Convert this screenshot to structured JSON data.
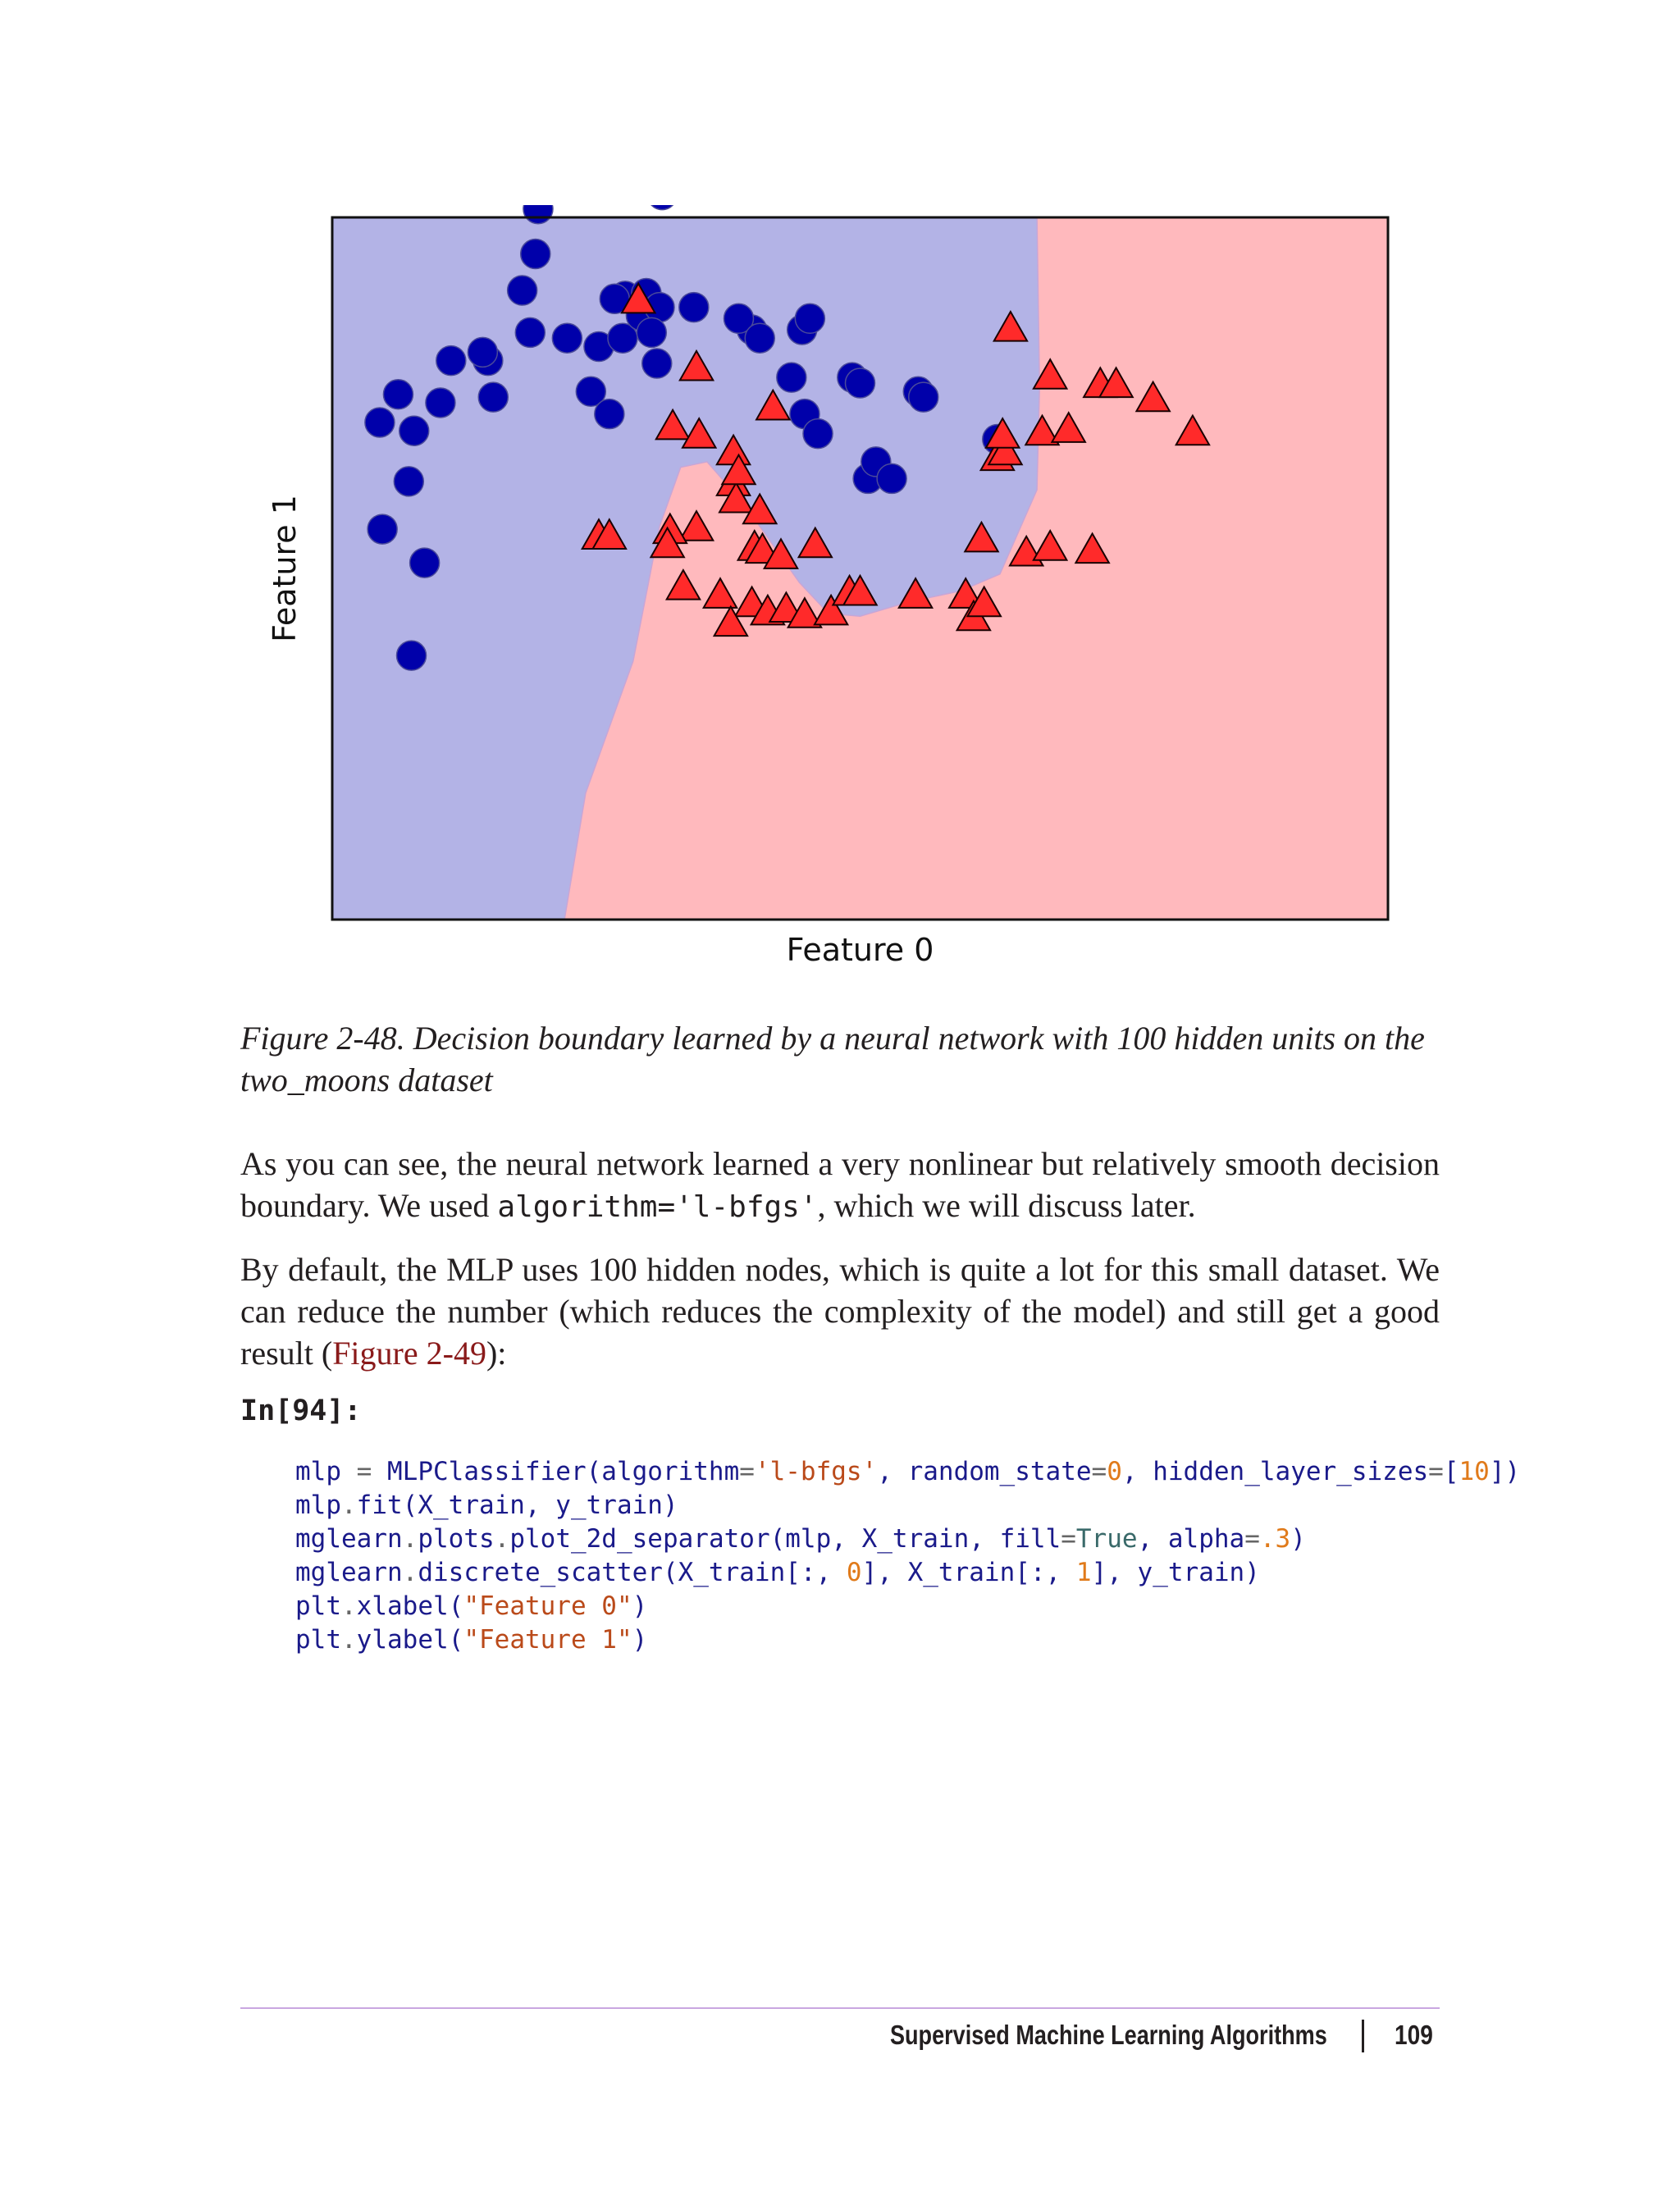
{
  "chart_data": {
    "type": "scatter",
    "title": "",
    "xlabel": "Feature 0",
    "ylabel": "Feature 1",
    "xlim": [
      -1.5,
      2.5
    ],
    "ylim": [
      -1.0,
      1.5
    ],
    "grid": false,
    "regions": {
      "class_0_fill": "#b3b3e6",
      "class_1_fill": "#ffb9bd",
      "boundary": [
        [
          -0.62,
          -1.0
        ],
        [
          -0.54,
          -0.55
        ],
        [
          -0.36,
          -0.08
        ],
        [
          -0.26,
          0.4
        ],
        [
          -0.18,
          0.61
        ],
        [
          -0.08,
          0.63
        ],
        [
          0.06,
          0.48
        ],
        [
          0.18,
          0.32
        ],
        [
          0.27,
          0.2
        ],
        [
          0.38,
          0.09
        ],
        [
          0.5,
          0.08
        ],
        [
          0.68,
          0.13
        ],
        [
          0.88,
          0.17
        ],
        [
          1.03,
          0.23
        ],
        [
          1.17,
          0.53
        ],
        [
          1.18,
          0.9
        ],
        [
          1.17,
          1.5
        ]
      ]
    },
    "series": [
      {
        "name": "",
        "marker": "circle",
        "color": "#0000aa",
        "points": [
          [
            -1.32,
            0.77
          ],
          [
            -1.25,
            0.87
          ],
          [
            -1.19,
            0.74
          ],
          [
            -1.05,
            0.99
          ],
          [
            -0.91,
            0.99
          ],
          [
            -0.78,
            1.24
          ],
          [
            -0.73,
            1.37
          ],
          [
            -0.72,
            1.53
          ],
          [
            -0.61,
            1.07
          ],
          [
            -0.49,
            1.04
          ],
          [
            -0.25,
            1.58
          ],
          [
            -0.39,
            1.22
          ],
          [
            -0.4,
            1.07
          ],
          [
            -0.31,
            1.23
          ],
          [
            -0.52,
            0.88
          ],
          [
            -0.45,
            0.8
          ],
          [
            -0.89,
            0.86
          ],
          [
            -0.93,
            1.02
          ],
          [
            -1.09,
            0.84
          ],
          [
            -1.21,
            0.56
          ],
          [
            -1.31,
            0.39
          ],
          [
            -1.15,
            0.27
          ],
          [
            -0.27,
            0.98
          ],
          [
            -0.33,
            1.15
          ],
          [
            -0.26,
            1.18
          ],
          [
            -0.13,
            1.18
          ],
          [
            0.09,
            1.1
          ],
          [
            0.04,
            1.14
          ],
          [
            0.12,
            1.07
          ],
          [
            0.28,
            1.1
          ],
          [
            0.31,
            1.14
          ],
          [
            0.47,
            0.93
          ],
          [
            0.5,
            0.91
          ],
          [
            0.24,
            0.93
          ],
          [
            0.29,
            0.8
          ],
          [
            0.34,
            0.73
          ],
          [
            0.53,
            0.57
          ],
          [
            0.56,
            0.63
          ],
          [
            0.62,
            0.57
          ],
          [
            0.72,
            0.88
          ],
          [
            0.74,
            0.86
          ],
          [
            1.02,
            0.71
          ],
          [
            -1.2,
            -0.06
          ],
          [
            -0.43,
            1.21
          ],
          [
            -0.29,
            1.09
          ],
          [
            -0.75,
            1.09
          ]
        ]
      },
      {
        "name": "",
        "marker": "triangle",
        "color": "#ff2a2a",
        "points": [
          [
            -0.21,
            0.75
          ],
          [
            -0.11,
            0.72
          ],
          [
            0.02,
            0.66
          ],
          [
            0.02,
            0.55
          ],
          [
            0.03,
            0.49
          ],
          [
            0.04,
            0.59
          ],
          [
            -0.12,
            0.39
          ],
          [
            0.12,
            0.45
          ],
          [
            -0.22,
            0.38
          ],
          [
            -0.49,
            0.36
          ],
          [
            -0.45,
            0.36
          ],
          [
            -0.23,
            0.33
          ],
          [
            0.1,
            0.32
          ],
          [
            0.13,
            0.31
          ],
          [
            0.2,
            0.29
          ],
          [
            -0.17,
            0.18
          ],
          [
            -0.03,
            0.15
          ],
          [
            0.09,
            0.12
          ],
          [
            0.15,
            0.09
          ],
          [
            0.22,
            0.1
          ],
          [
            0.01,
            0.05
          ],
          [
            0.29,
            0.08
          ],
          [
            0.39,
            0.09
          ],
          [
            0.46,
            0.16
          ],
          [
            0.5,
            0.16
          ],
          [
            0.71,
            0.15
          ],
          [
            0.9,
            0.15
          ],
          [
            0.93,
            0.07
          ],
          [
            0.97,
            0.12
          ],
          [
            1.02,
            0.64
          ],
          [
            1.05,
            0.66
          ],
          [
            1.04,
            0.72
          ],
          [
            0.96,
            0.35
          ],
          [
            1.13,
            0.3
          ],
          [
            1.22,
            0.32
          ],
          [
            1.38,
            0.31
          ],
          [
            1.41,
            0.9
          ],
          [
            1.47,
            0.9
          ],
          [
            1.61,
            0.85
          ],
          [
            1.76,
            0.73
          ],
          [
            1.19,
            0.73
          ],
          [
            1.29,
            0.74
          ],
          [
            1.07,
            1.1
          ],
          [
            1.22,
            0.93
          ],
          [
            -0.34,
            1.2
          ],
          [
            -0.12,
            0.96
          ],
          [
            0.17,
            0.82
          ],
          [
            0.33,
            0.33
          ]
        ]
      }
    ]
  },
  "caption": "Figure 2-48. Decision boundary learned by a neural network with 100 hidden units on the two_moons dataset",
  "para1": {
    "part1": "As you can see, the neural network learned a very nonlinear but relatively smooth decision boundary. We used ",
    "code": "algorithm='l-bfgs'",
    "part2": ", which we will discuss later."
  },
  "para2": {
    "part1": "By default, the MLP uses 100 hidden nodes, which is quite a lot for this small dataset. We can reduce the number (which reduces the complexity of the model) and still get a good result (",
    "link": "Figure 2-49",
    "part2": "):"
  },
  "cell_label": "In[94]:",
  "code_lines": {
    "l1": {
      "a": "mlp",
      "b": " = ",
      "c": "MLPClassifier(algorithm",
      "d": "=",
      "e": "'l-bfgs'",
      "f": ", random_state",
      "g": "=",
      "h": "0",
      "i": ", hidden_layer_sizes",
      "j": "=",
      "k": "[",
      "l": "10",
      "m": "])"
    },
    "l2": {
      "a": "mlp",
      "b": ".",
      "c": "fit(X_train, y_train)"
    },
    "l3": {
      "a": "mglearn",
      "b": ".",
      "c": "plots",
      "d": ".",
      "e": "plot_2d_separator(mlp, X_train, fill",
      "f": "=",
      "g": "True",
      "h": ", alpha",
      "i": "=",
      "j": ".3",
      "k": ")"
    },
    "l4": {
      "a": "mglearn",
      "b": ".",
      "c": "discrete_scatter(X_train[:, ",
      "d": "0",
      "e": "], X_train[:, ",
      "f": "1",
      "g": "], y_train)"
    },
    "l5": {
      "a": "plt",
      "b": ".",
      "c": "xlabel(",
      "d": "\"Feature 0\"",
      "e": ")"
    },
    "l6": {
      "a": "plt",
      "b": ".",
      "c": "ylabel(",
      "d": "\"Feature 1\"",
      "e": ")"
    }
  },
  "footer": {
    "title": "Supervised Machine Learning Algorithms",
    "page": "109"
  }
}
